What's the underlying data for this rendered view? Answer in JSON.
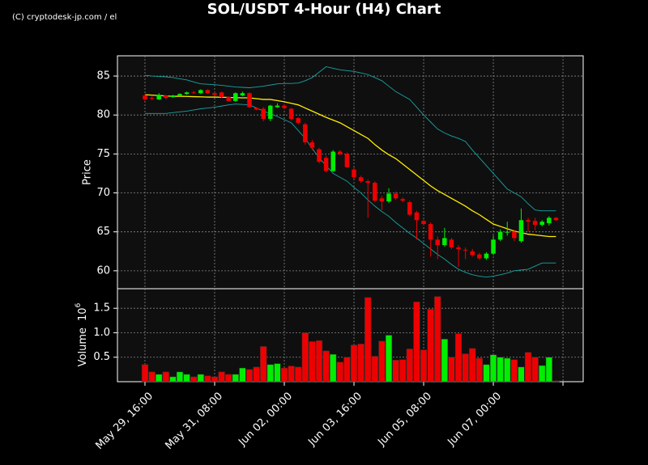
{
  "chart_data": {
    "type": "candlestick",
    "title": "SOL/USDT 4-Hour (H4) Chart",
    "watermark": "(C) cryptodesk-jp.com / el",
    "grid": true,
    "up_color": "#00ee00",
    "down_color": "#ee0000",
    "xlim": [
      -3.95,
      62.9
    ],
    "xticks": [
      {
        "value": 0,
        "label": "May 29, 16:00"
      },
      {
        "value": 10,
        "label": "May 31, 08:00"
      },
      {
        "value": 20,
        "label": "Jun 02, 00:00"
      },
      {
        "value": 30,
        "label": "Jun 03, 16:00"
      },
      {
        "value": 40,
        "label": "Jun 05, 08:00"
      },
      {
        "value": 50,
        "label": "Jun 07, 00:00"
      },
      {
        "value": 60
      }
    ],
    "ylabel": "Price",
    "ylim": [
      57.7,
      87.6
    ],
    "yticks": [
      60,
      65,
      70,
      75,
      80,
      85
    ],
    "open": [
      82.5,
      82.2,
      82.0,
      82.5,
      82.3,
      82.5,
      82.7,
      82.9,
      82.8,
      83.2,
      82.8,
      82.9,
      82.3,
      81.8,
      82.5,
      82.8,
      80.9,
      80.8,
      79.5,
      81.0,
      81.2,
      80.8,
      79.6,
      78.8,
      76.5,
      75.6,
      74.5,
      72.8,
      75.3,
      75.0,
      73.0,
      72.0,
      71.5,
      71.3,
      69.3,
      68.9,
      69.9,
      69.2,
      68.8,
      67.5,
      66.4,
      66.0,
      64.0,
      63.3,
      64.0,
      63.0,
      62.7,
      62.5,
      62.1,
      61.6,
      62.2,
      64.0,
      64.9,
      65.0,
      63.8,
      66.5,
      66.4,
      65.9,
      66.1,
      66.8
    ],
    "high": [
      82.7,
      82.4,
      82.8,
      82.6,
      82.6,
      82.8,
      83.0,
      83.1,
      83.3,
      83.3,
      82.9,
      83.0,
      82.4,
      82.9,
      83.0,
      82.9,
      81.0,
      81.0,
      81.3,
      81.5,
      81.4,
      80.9,
      79.7,
      79.0,
      76.8,
      75.8,
      74.8,
      75.5,
      75.5,
      75.2,
      73.3,
      72.2,
      71.7,
      71.5,
      69.6,
      70.6,
      70.2,
      69.4,
      69.0,
      67.7,
      66.6,
      66.2,
      64.4,
      65.5,
      64.2,
      63.3,
      63.0,
      62.8,
      62.3,
      62.4,
      64.5,
      65.3,
      66.3,
      65.3,
      68.0,
      66.8,
      66.8,
      66.5,
      67.0,
      66.9
    ],
    "low": [
      81.8,
      81.9,
      81.9,
      82.0,
      82.2,
      82.4,
      82.6,
      82.7,
      82.7,
      82.7,
      82.5,
      82.2,
      81.7,
      81.7,
      82.4,
      80.9,
      80.6,
      79.2,
      79.2,
      80.9,
      80.8,
      79.3,
      78.8,
      76.2,
      75.5,
      73.8,
      72.6,
      72.7,
      74.8,
      73.2,
      71.8,
      71.3,
      66.8,
      68.8,
      67.8,
      68.7,
      69.1,
      68.8,
      67.0,
      64.0,
      65.8,
      61.8,
      61.5,
      63.1,
      62.8,
      60.5,
      61.5,
      61.8,
      61.4,
      61.4,
      62.0,
      63.8,
      64.5,
      63.8,
      63.6,
      65.0,
      65.2,
      65.7,
      65.8,
      66.4
    ],
    "close": [
      82.0,
      82.1,
      82.6,
      82.2,
      82.5,
      82.7,
      82.9,
      82.8,
      83.2,
      82.8,
      82.6,
      82.3,
      81.8,
      82.8,
      82.8,
      81.0,
      80.7,
      79.5,
      81.2,
      81.2,
      80.9,
      79.5,
      79.0,
      76.5,
      75.8,
      74.0,
      72.8,
      75.3,
      75.0,
      73.3,
      72.0,
      71.5,
      71.3,
      69.0,
      68.9,
      69.9,
      69.3,
      69.0,
      67.2,
      66.5,
      66.0,
      64.0,
      63.3,
      64.2,
      63.0,
      62.8,
      62.6,
      62.0,
      61.6,
      62.2,
      64.0,
      65.0,
      65.0,
      64.2,
      66.5,
      66.3,
      65.9,
      66.3,
      66.8,
      66.5
    ],
    "ma": {
      "color": "#ffee00",
      "values": [
        82.6,
        82.55,
        82.5,
        82.45,
        82.4,
        82.4,
        82.38,
        82.35,
        82.33,
        82.3,
        82.3,
        82.28,
        82.25,
        82.23,
        82.2,
        82.2,
        82.1,
        82.0,
        82.0,
        81.85,
        81.7,
        81.5,
        81.3,
        80.9,
        80.5,
        80.1,
        79.7,
        79.35,
        79.0,
        78.5,
        78.0,
        77.5,
        77.0,
        76.2,
        75.5,
        74.9,
        74.4,
        73.7,
        73.0,
        72.3,
        71.6,
        70.9,
        70.3,
        69.8,
        69.3,
        68.8,
        68.3,
        67.7,
        67.2,
        66.6,
        66.0,
        65.7,
        65.4,
        65.1,
        64.9,
        64.7,
        64.6,
        64.5,
        64.4,
        64.4
      ]
    },
    "upper_band": {
      "color": "#1aa3a3",
      "values": [
        85.1,
        85.0,
        84.95,
        84.9,
        84.8,
        84.65,
        84.5,
        84.25,
        84.0,
        83.95,
        83.9,
        83.8,
        83.7,
        83.6,
        83.55,
        83.5,
        83.6,
        83.7,
        83.85,
        84.0,
        84.05,
        84.05,
        84.1,
        84.4,
        84.8,
        85.5,
        86.2,
        86.0,
        85.8,
        85.7,
        85.6,
        85.4,
        85.2,
        84.8,
        84.4,
        83.7,
        83.0,
        82.5,
        82.0,
        81.0,
        80.0,
        79.1,
        78.2,
        77.7,
        77.3,
        77.0,
        76.6,
        75.5,
        74.5,
        73.5,
        72.5,
        71.5,
        70.5,
        70.0,
        69.5,
        68.6,
        67.8,
        67.7,
        67.7,
        67.7
      ]
    },
    "lower_band": {
      "color": "#1aa3a3",
      "values": [
        80.2,
        80.2,
        80.2,
        80.2,
        80.3,
        80.4,
        80.5,
        80.65,
        80.8,
        80.9,
        81.0,
        81.15,
        81.3,
        81.4,
        81.35,
        81.3,
        80.9,
        80.5,
        80.15,
        79.8,
        79.4,
        79.0,
        78.0,
        77.0,
        75.7,
        74.5,
        73.5,
        72.5,
        72.0,
        71.5,
        70.7,
        70.0,
        69.1,
        68.3,
        67.6,
        67.0,
        66.2,
        65.5,
        64.8,
        64.2,
        63.5,
        62.8,
        62.1,
        61.5,
        60.8,
        60.2,
        59.8,
        59.5,
        59.3,
        59.2,
        59.3,
        59.5,
        59.7,
        60.0,
        60.1,
        60.2,
        60.6,
        61.0,
        61.0,
        61.0
      ]
    },
    "volume": {
      "ylabel": "Volume",
      "offset_base": "10",
      "offset_exponent": "6",
      "ylim": [
        0,
        1.9
      ],
      "yticks": [
        0.5,
        {
          "value": 1,
          "label": "1.0"
        },
        1.5
      ],
      "values": [
        0.35,
        0.2,
        0.15,
        0.2,
        0.1,
        0.2,
        0.15,
        0.1,
        0.15,
        0.12,
        0.1,
        0.2,
        0.15,
        0.15,
        0.28,
        0.25,
        0.3,
        0.72,
        0.35,
        0.37,
        0.28,
        0.32,
        0.3,
        1.0,
        0.82,
        0.84,
        0.63,
        0.56,
        0.4,
        0.5,
        0.75,
        0.77,
        1.72,
        0.52,
        0.83,
        0.95,
        0.44,
        0.45,
        0.67,
        1.63,
        0.65,
        1.48,
        1.74,
        0.87,
        0.5,
        0.98,
        0.57,
        0.68,
        0.48,
        0.35,
        0.55,
        0.5,
        0.48,
        0.45,
        0.3,
        0.6,
        0.5,
        0.33,
        0.5,
        0.02
      ]
    }
  }
}
